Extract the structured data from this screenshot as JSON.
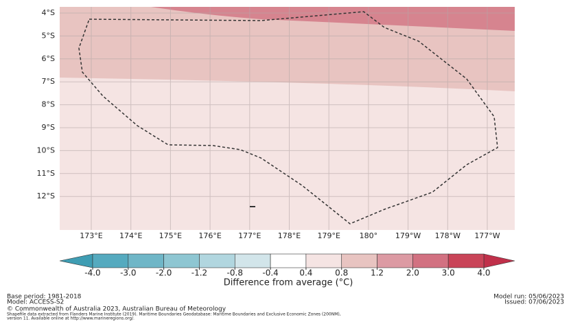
{
  "map": {
    "lat_labels": [
      "4°S",
      "5°S",
      "6°S",
      "7°S",
      "8°S",
      "9°S",
      "10°S",
      "11°S",
      "12°S"
    ],
    "lon_labels": [
      "173°E",
      "174°E",
      "175°E",
      "176°E",
      "177°E",
      "178°E",
      "179°E",
      "180°",
      "179°W",
      "178°W",
      "177°W"
    ]
  },
  "colorbar": {
    "label": "Difference from average (°C)",
    "ticks": [
      {
        "value": -4,
        "label": "-4.0"
      },
      {
        "value": -3,
        "label": "-3.0"
      },
      {
        "value": -2,
        "label": "-2.0"
      },
      {
        "value": -1.2,
        "label": "-1.2"
      },
      {
        "value": -0.8,
        "label": "-0.8"
      },
      {
        "value": -0.4,
        "label": "-0.4"
      },
      {
        "value": 0.4,
        "label": "0.4"
      },
      {
        "value": 0.8,
        "label": "0.8"
      },
      {
        "value": 1.2,
        "label": "1.2"
      },
      {
        "value": 2,
        "label": "2.0"
      },
      {
        "value": 3,
        "label": "3.0"
      },
      {
        "value": 4,
        "label": "4.0"
      }
    ],
    "colors": [
      "#55aabf",
      "#6fb6c7",
      "#8ec6d2",
      "#b1d6df",
      "#d2e5ea",
      "#ffffff",
      "#f5e4e3",
      "#e8c4c1",
      "#dc9aa3",
      "#d27181",
      "#c94458"
    ],
    "extend_colors": [
      "#3f9db3",
      "#c0304a"
    ]
  },
  "footer": {
    "base_period": "Base period: 1981-2018",
    "model": "Model: ACCESS-S2",
    "copyright": "© Commonwealth of Australia 2023, Australian Bureau of Meteorology",
    "shapefile": "Shapefile data extracted from Flanders Marine Institute (2019). Maritime Boundaries Geodatabase: Maritime Boundaries and Exclusive Economic Zones (200NM),",
    "version": "version 11. Available online at http://www.marineregions.org/.",
    "model_run": "Model run: 05/06/2023",
    "issued": "Issued: 07/06/2023"
  }
}
